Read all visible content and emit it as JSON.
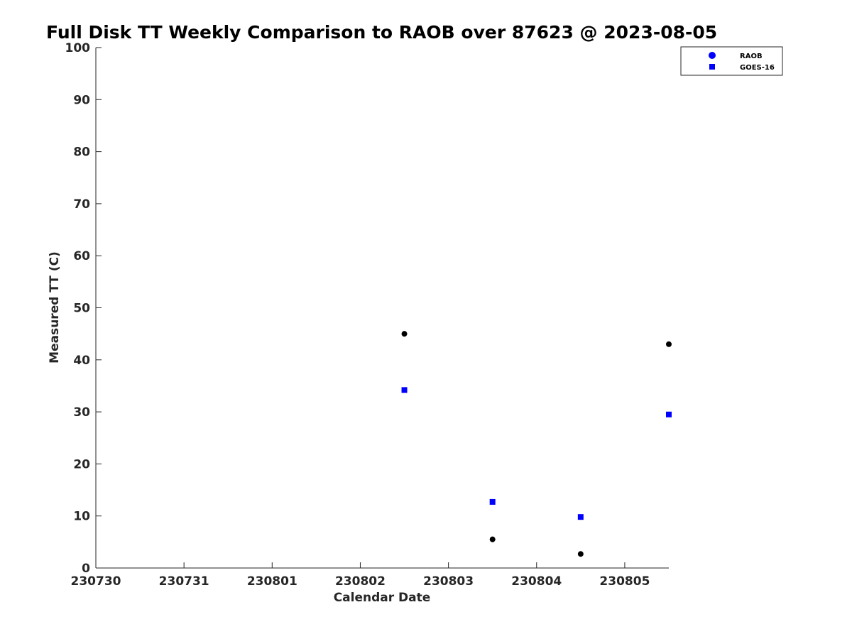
{
  "chart_data": {
    "type": "scatter",
    "title": "Full Disk TT Weekly Comparison to RAOB over 87623 @ 2023-08-05",
    "xlabel": "Calendar Date",
    "ylabel": "Measured TT (C)",
    "x_tick_labels": [
      "230730",
      "230731",
      "230801",
      "230802",
      "230803",
      "230804",
      "230805"
    ],
    "xlim": [
      0,
      6.5
    ],
    "ylim": [
      0,
      100
    ],
    "y_ticks": [
      0,
      10,
      20,
      30,
      40,
      50,
      60,
      70,
      80,
      90,
      100
    ],
    "grid": false,
    "legend_position": "top-right",
    "series": [
      {
        "name": "RAOB",
        "marker": "circle",
        "color": "#000000",
        "legend_color": "#0000ff",
        "points": [
          {
            "x": 3.5,
            "y": 45
          },
          {
            "x": 4.5,
            "y": 5.5
          },
          {
            "x": 5.5,
            "y": 2.7
          },
          {
            "x": 6.5,
            "y": 43
          }
        ]
      },
      {
        "name": "GOES-16",
        "marker": "square",
        "color": "#0000ff",
        "legend_color": "#0000ff",
        "points": [
          {
            "x": 3.5,
            "y": 34.2
          },
          {
            "x": 4.5,
            "y": 12.7
          },
          {
            "x": 5.5,
            "y": 9.8
          },
          {
            "x": 6.5,
            "y": 29.5
          }
        ]
      }
    ]
  }
}
